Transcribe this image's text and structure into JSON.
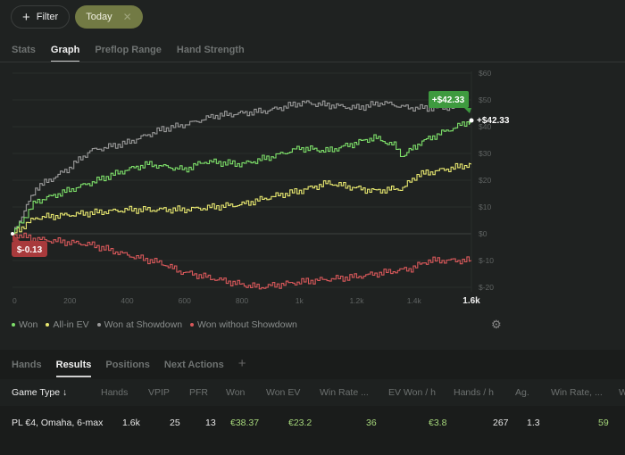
{
  "filters": {
    "filter_label": "Filter",
    "today_label": "Today"
  },
  "tabs": [
    "Stats",
    "Graph",
    "Preflop Range",
    "Hand Strength"
  ],
  "bottom_tabs": [
    "Hands",
    "Results",
    "Positions",
    "Next Actions"
  ],
  "table": {
    "headers": [
      "Game Type ↓",
      "Hands",
      "VPIP",
      "PFR",
      "Won",
      "Won EV",
      "Win Rate ...",
      "EV Won / h",
      "Hands / h",
      "Ag.",
      "Win Rate, ...",
      "W"
    ],
    "row": [
      "PL €4, Omaha, 6-max",
      "1.6k",
      "25",
      "13",
      "€38.37",
      "€23.2",
      "36",
      "€3.8",
      "267",
      "1.3",
      "59"
    ]
  },
  "chart_data": {
    "type": "line",
    "xlabel": "",
    "ylabel": "",
    "xlim": [
      0,
      1600
    ],
    "ylim": [
      -20,
      60
    ],
    "x_ticks": [
      "0",
      "200",
      "400",
      "600",
      "800",
      "1k",
      "1.2k",
      "1.4k",
      "1.6k"
    ],
    "x_tick_values": [
      0,
      200,
      400,
      600,
      800,
      1000,
      1200,
      1400,
      1600
    ],
    "y_ticks": [
      "$60",
      "$50",
      "$40",
      "$30",
      "$20",
      "$10",
      "$0",
      "$-10",
      "$-20"
    ],
    "y_tick_values": [
      60,
      50,
      40,
      30,
      20,
      10,
      0,
      -10,
      -20
    ],
    "grid": true,
    "legend_position": "bottom-left",
    "series": [
      {
        "name": "Won",
        "color": "#7ee06a",
        "x": [
          0,
          80,
          190,
          270,
          400,
          470,
          600,
          670,
          800,
          910,
          1000,
          1100,
          1200,
          1260,
          1330,
          1360,
          1420,
          1480,
          1600
        ],
        "y": [
          0,
          12,
          16,
          19,
          24,
          26,
          24,
          27,
          26,
          29,
          32,
          31,
          34,
          36,
          33,
          29,
          34,
          37,
          42.33
        ]
      },
      {
        "name": "All-in EV",
        "color": "#e8e870",
        "x": [
          0,
          80,
          190,
          400,
          600,
          800,
          910,
          1000,
          1100,
          1200,
          1260,
          1360,
          1410,
          1600
        ],
        "y": [
          0,
          6,
          7,
          9,
          9,
          11,
          14,
          16,
          19,
          17,
          16,
          17,
          22,
          26
        ]
      },
      {
        "name": "Won at Showdown",
        "color": "#9a9a9a",
        "x": [
          0,
          80,
          190,
          270,
          400,
          520,
          610,
          700,
          890,
          1010,
          1200,
          1290,
          1380,
          1430,
          1500,
          1540,
          1590
        ],
        "y": [
          0,
          17,
          24,
          31,
          34,
          39,
          41,
          44,
          46,
          49,
          47,
          49,
          47,
          47,
          47,
          47,
          52
        ]
      },
      {
        "name": "Won without Showdown",
        "color": "#d8585a",
        "x": [
          0,
          80,
          270,
          400,
          520,
          580,
          800,
          860,
          1000,
          1200,
          1390,
          1450,
          1600
        ],
        "y": [
          -0.13,
          -2,
          -4,
          -8,
          -11,
          -14,
          -19,
          -20,
          -18,
          -16,
          -13,
          -10,
          -10
        ]
      }
    ],
    "end_label": "+$42.33",
    "start_label": "$-0.13"
  }
}
